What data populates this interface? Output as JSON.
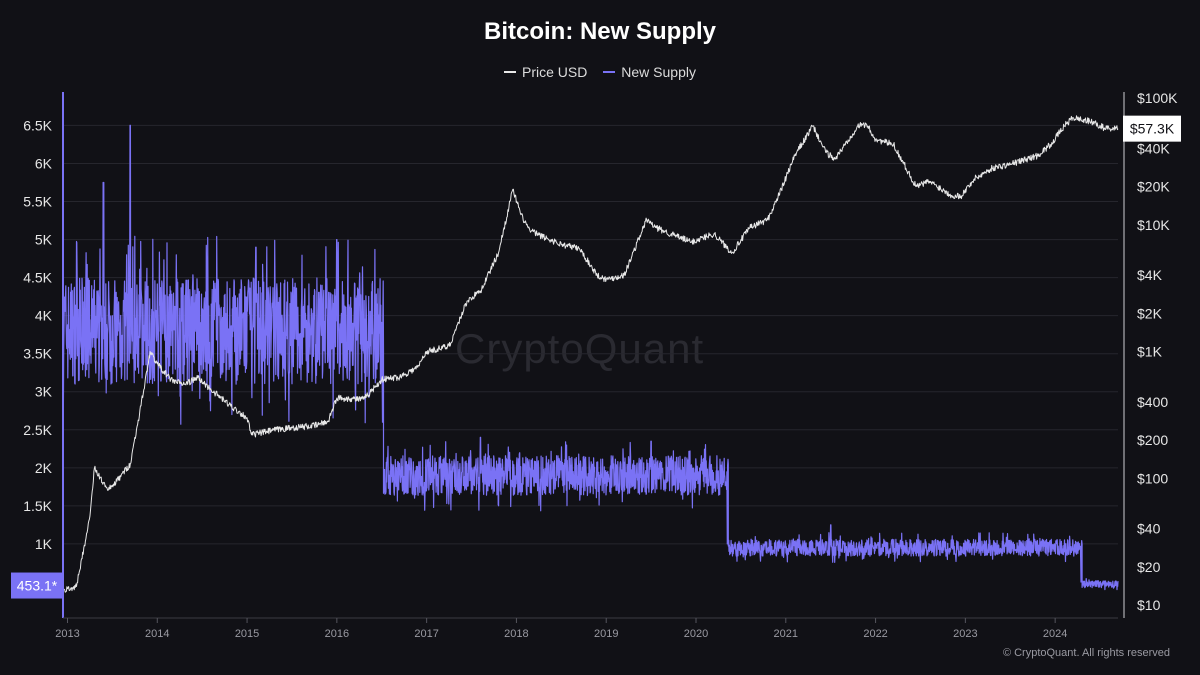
{
  "chart_data": {
    "type": "line",
    "title": "Bitcoin: New Supply",
    "legend": [
      {
        "name": "Price USD",
        "color": "#e8e8e8"
      },
      {
        "name": "New Supply",
        "color": "#7a72f5"
      }
    ],
    "legend_position": "top-center",
    "grid": true,
    "left_axis": {
      "ticks": [
        "1K",
        "1.5K",
        "2K",
        "2.5K",
        "3K",
        "3.5K",
        "4K",
        "4.5K",
        "5K",
        "5.5K",
        "6K",
        "6.5K"
      ],
      "tick_values": [
        1000,
        1500,
        2000,
        2500,
        3000,
        3500,
        4000,
        4500,
        5000,
        5500,
        6000,
        6500
      ],
      "ylim": [
        0,
        6900
      ],
      "current_tag": "453.1*"
    },
    "right_axis": {
      "scale": "log",
      "ticks": [
        "$10",
        "$20",
        "$40",
        "$100",
        "$200",
        "$400",
        "$1K",
        "$2K",
        "$4K",
        "$10K",
        "$20K",
        "$40K",
        "$100K"
      ],
      "tick_values": [
        10,
        20,
        40,
        100,
        200,
        400,
        1000,
        2000,
        4000,
        10000,
        20000,
        40000,
        100000
      ],
      "current_tag": "$57.3K"
    },
    "x_axis": {
      "ticks": [
        "2013",
        "2014",
        "2015",
        "2016",
        "2017",
        "2018",
        "2019",
        "2020",
        "2021",
        "2022",
        "2023",
        "2024"
      ],
      "range": [
        2012.95,
        2024.7
      ]
    },
    "series": [
      {
        "name": "New Supply",
        "color": "#7a72f5",
        "regimes": [
          {
            "x_start": 2012.95,
            "x_end": 2016.52,
            "level": 3800,
            "noise": 700,
            "spikes": [
              [
                2013.7,
                6500
              ],
              [
                2013.4,
                5750
              ],
              [
                2016.0,
                5000
              ],
              [
                2015.1,
                4900
              ]
            ],
            "low": 2600
          },
          {
            "x_start": 2016.52,
            "x_end": 2020.36,
            "level": 1900,
            "noise": 260,
            "spikes": [
              [
                2017.6,
                2400
              ],
              [
                2019.5,
                2350
              ]
            ],
            "low": 1000
          },
          {
            "x_start": 2020.36,
            "x_end": 2024.3,
            "level": 950,
            "noise": 110,
            "spikes": [
              [
                2021.5,
                1250
              ]
            ],
            "low": 500
          },
          {
            "x_start": 2024.3,
            "x_end": 2024.7,
            "level": 470,
            "noise": 45,
            "spikes": [],
            "low": 400
          }
        ],
        "current": 453.1
      },
      {
        "name": "Price USD",
        "color": "#e8e8e8",
        "x": [
          2012.95,
          2013.1,
          2013.25,
          2013.3,
          2013.45,
          2013.55,
          2013.7,
          2013.85,
          2013.92,
          2014.0,
          2014.15,
          2014.3,
          2014.45,
          2014.6,
          2014.8,
          2015.0,
          2015.05,
          2015.3,
          2015.5,
          2015.75,
          2015.9,
          2016.0,
          2016.3,
          2016.5,
          2016.7,
          2016.9,
          2017.0,
          2017.25,
          2017.45,
          2017.6,
          2017.8,
          2017.96,
          2018.05,
          2018.15,
          2018.3,
          2018.5,
          2018.7,
          2018.9,
          2019.0,
          2019.2,
          2019.45,
          2019.55,
          2019.75,
          2019.95,
          2020.2,
          2020.4,
          2020.6,
          2020.8,
          2020.95,
          2021.1,
          2021.3,
          2021.45,
          2021.55,
          2021.8,
          2021.9,
          2022.0,
          2022.2,
          2022.45,
          2022.6,
          2022.85,
          2022.95,
          2023.1,
          2023.3,
          2023.5,
          2023.8,
          2023.95,
          2024.1,
          2024.2,
          2024.4,
          2024.55,
          2024.7
        ],
        "y": [
          13,
          14,
          50,
          120,
          80,
          95,
          130,
          500,
          1000,
          800,
          600,
          550,
          620,
          500,
          380,
          300,
          220,
          240,
          250,
          260,
          280,
          430,
          420,
          600,
          630,
          750,
          1000,
          1100,
          2500,
          3000,
          6000,
          19000,
          12000,
          9000,
          8000,
          7000,
          6500,
          4000,
          3700,
          4000,
          11000,
          9500,
          8300,
          7300,
          8500,
          6000,
          9500,
          11000,
          19000,
          35000,
          60000,
          37000,
          33000,
          60000,
          62000,
          47000,
          43000,
          20000,
          22000,
          17000,
          16800,
          23000,
          28000,
          30000,
          35000,
          43000,
          60000,
          70000,
          65000,
          58000,
          57300
        ]
      }
    ]
  },
  "footer": "© CryptoQuant. All rights reserved",
  "watermark": "CryptoQuant"
}
